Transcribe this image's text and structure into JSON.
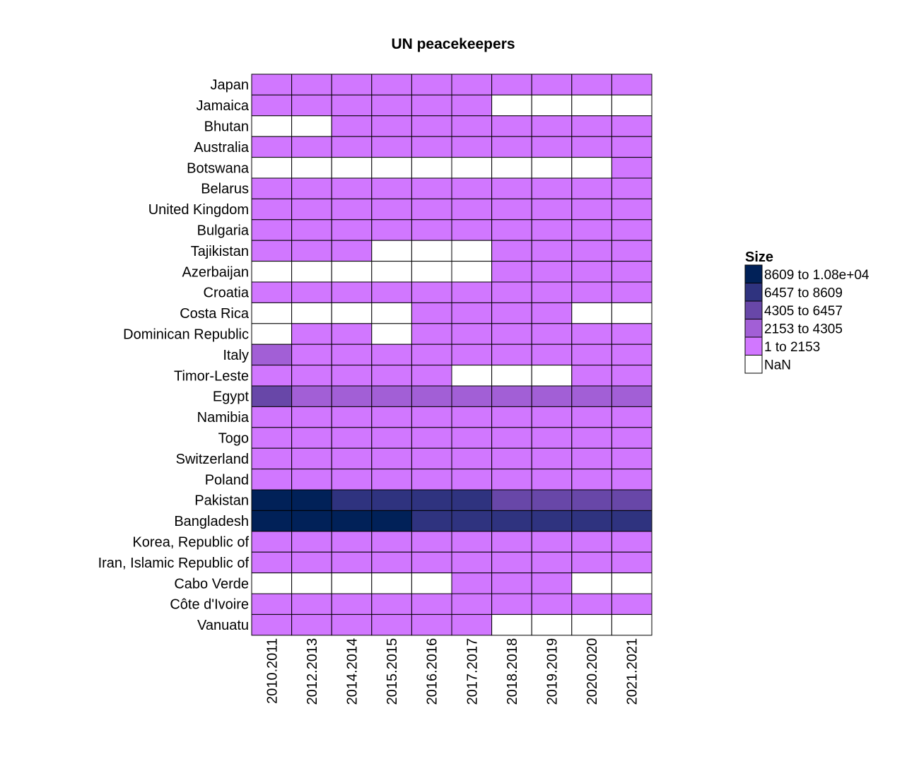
{
  "chart_data": {
    "type": "heatmap",
    "title": "UN peacekeepers",
    "xlabel": "",
    "ylabel": "",
    "x_categories": [
      "2010.2011",
      "2012.2013",
      "2014.2014",
      "2015.2015",
      "2016.2016",
      "2017.2017",
      "2018.2018",
      "2019.2019",
      "2020.2020",
      "2021.2021"
    ],
    "y_categories": [
      "Japan",
      "Jamaica",
      "Bhutan",
      "Australia",
      "Botswana",
      "Belarus",
      "United Kingdom",
      "Bulgaria",
      "Tajikistan",
      "Azerbaijan",
      "Croatia",
      "Costa Rica",
      "Dominican Republic",
      "Italy",
      "Timor-Leste",
      "Egypt",
      "Namibia",
      "Togo",
      "Switzerland",
      "Poland",
      "Pakistan",
      "Bangladesh",
      "Korea, Republic of",
      "Iran, Islamic Republic of",
      "Cabo Verde",
      "Côte d'Ivoire",
      "Vanuatu"
    ],
    "legend": {
      "title": "Size",
      "placement": "right",
      "bins": [
        {
          "label": "8609 to 1.08e+04",
          "color": "#012158"
        },
        {
          "label": "6457 to 8609",
          "color": "#2f337f"
        },
        {
          "label": "4305 to 6457",
          "color": "#6847a8"
        },
        {
          "label": "2153 to 4305",
          "color": "#a25fd6"
        },
        {
          "label": "1 to 2153",
          "color": "#d177ff"
        },
        {
          "label": "NaN",
          "color": "#ffffff"
        }
      ]
    },
    "bin_index_matrix_note_columns": "each row lists the legend bin index per year column; null = NaN",
    "bins_by_row": [
      [
        4,
        4,
        4,
        4,
        4,
        4,
        4,
        4,
        4,
        4
      ],
      [
        4,
        4,
        4,
        4,
        4,
        4,
        null,
        null,
        null,
        null
      ],
      [
        null,
        null,
        4,
        4,
        4,
        4,
        4,
        4,
        4,
        4
      ],
      [
        4,
        4,
        4,
        4,
        4,
        4,
        4,
        4,
        4,
        4
      ],
      [
        null,
        null,
        null,
        null,
        null,
        null,
        null,
        null,
        null,
        4
      ],
      [
        4,
        4,
        4,
        4,
        4,
        4,
        4,
        4,
        4,
        4
      ],
      [
        4,
        4,
        4,
        4,
        4,
        4,
        4,
        4,
        4,
        4
      ],
      [
        4,
        4,
        4,
        4,
        4,
        4,
        4,
        4,
        4,
        4
      ],
      [
        4,
        4,
        4,
        null,
        null,
        null,
        4,
        4,
        4,
        4
      ],
      [
        null,
        null,
        null,
        null,
        null,
        null,
        4,
        4,
        4,
        4
      ],
      [
        4,
        4,
        4,
        4,
        4,
        4,
        4,
        4,
        4,
        4
      ],
      [
        null,
        null,
        null,
        null,
        4,
        4,
        4,
        4,
        null,
        null
      ],
      [
        null,
        4,
        4,
        null,
        4,
        4,
        4,
        4,
        4,
        4
      ],
      [
        3,
        4,
        4,
        4,
        4,
        4,
        4,
        4,
        4,
        4
      ],
      [
        4,
        4,
        4,
        4,
        4,
        null,
        null,
        null,
        4,
        4
      ],
      [
        2,
        3,
        3,
        3,
        3,
        3,
        3,
        3,
        3,
        3
      ],
      [
        4,
        4,
        4,
        4,
        4,
        4,
        4,
        4,
        4,
        4
      ],
      [
        4,
        4,
        4,
        4,
        4,
        4,
        4,
        4,
        4,
        4
      ],
      [
        4,
        4,
        4,
        4,
        4,
        4,
        4,
        4,
        4,
        4
      ],
      [
        4,
        4,
        4,
        4,
        4,
        4,
        4,
        4,
        4,
        4
      ],
      [
        0,
        0,
        1,
        1,
        1,
        1,
        2,
        2,
        2,
        2
      ],
      [
        0,
        0,
        0,
        0,
        1,
        1,
        1,
        1,
        1,
        1
      ],
      [
        4,
        4,
        4,
        4,
        4,
        4,
        4,
        4,
        4,
        4
      ],
      [
        4,
        4,
        4,
        4,
        4,
        4,
        4,
        4,
        4,
        4
      ],
      [
        null,
        null,
        null,
        null,
        null,
        4,
        4,
        4,
        null,
        null
      ],
      [
        4,
        4,
        4,
        4,
        4,
        4,
        4,
        4,
        4,
        4
      ],
      [
        4,
        4,
        4,
        4,
        4,
        4,
        null,
        null,
        null,
        null
      ]
    ],
    "grid": true
  }
}
